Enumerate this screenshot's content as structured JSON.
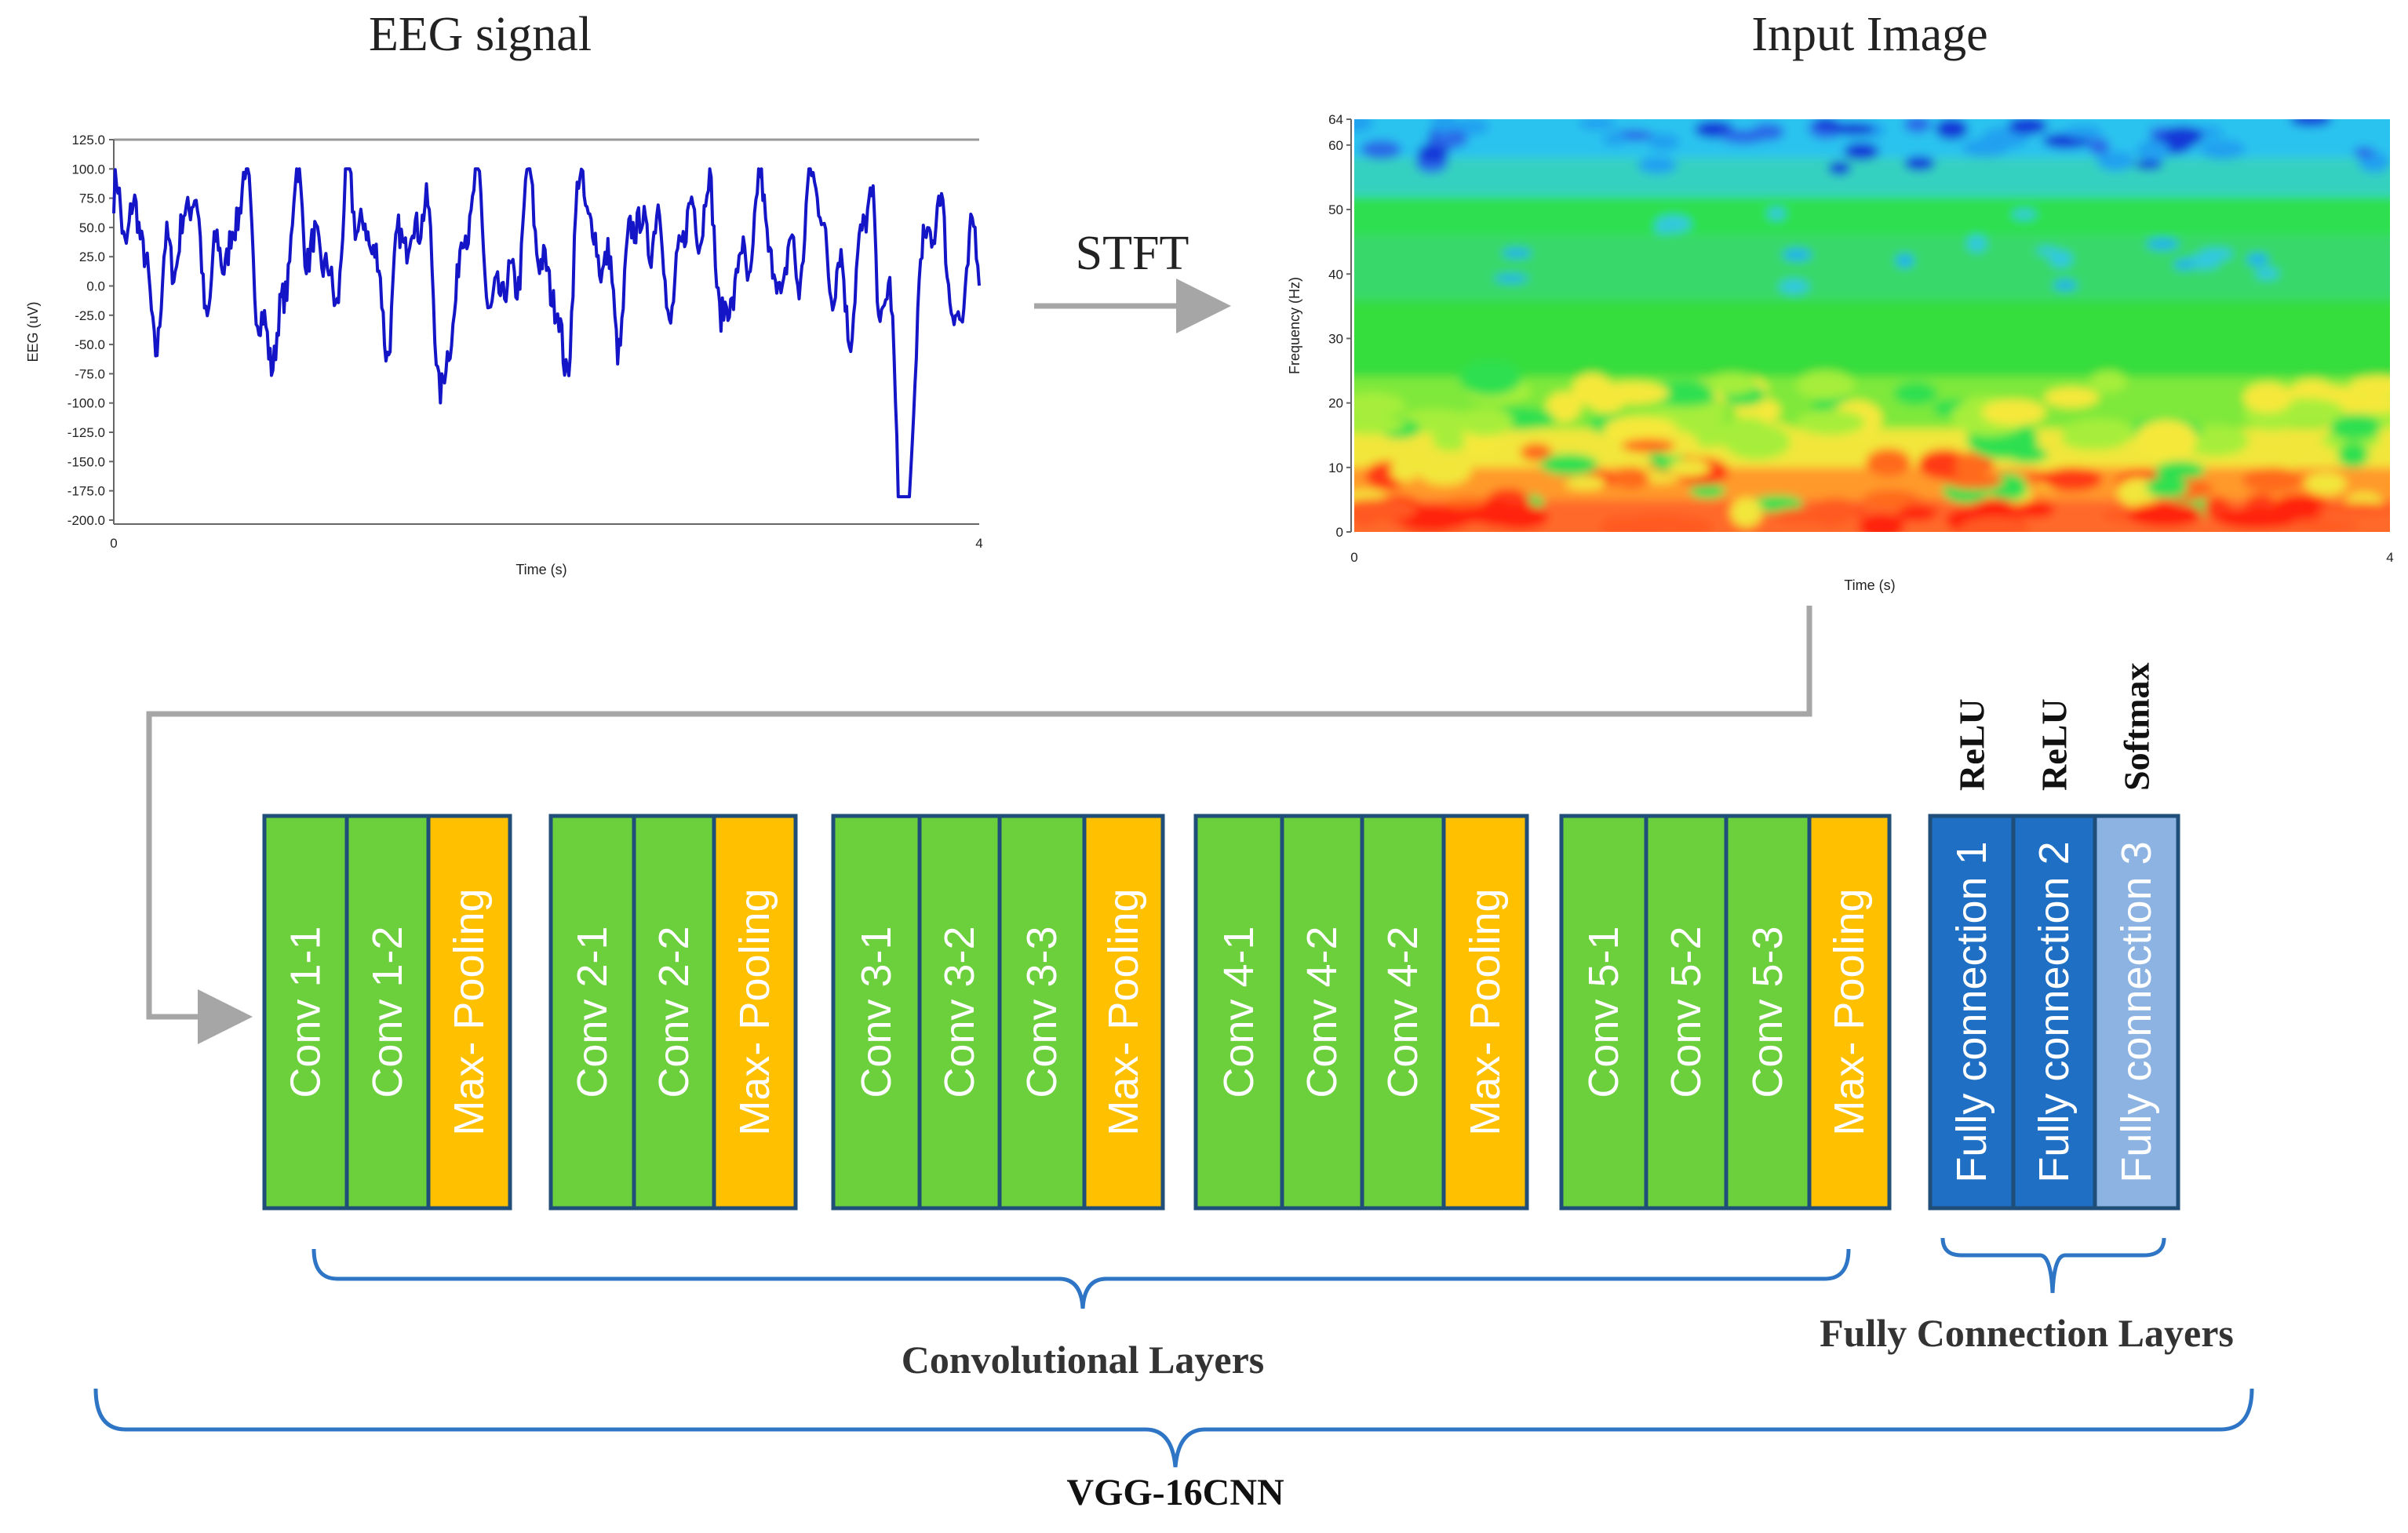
{
  "colors": {
    "conv": "#6ccf3c",
    "pool": "#ffc000",
    "fc_dark": "#1f6fc4",
    "fc_light": "#8db3e2",
    "stroke": "#1f4e79",
    "signal": "#1515c8",
    "arrow": "#a6a6a6",
    "brace": "#2e75c6"
  },
  "eeg": {
    "title": "EEG signal",
    "ylabel": "EEG (uV)",
    "xlabel": "Time (s)",
    "yticks": [
      "125.0",
      "100.0",
      "75.0",
      "50.0",
      "25.0",
      "0.0",
      "-25.0",
      "-50.0",
      "-75.0",
      "-100.0",
      "-125.0",
      "-150.0",
      "-175.0",
      "-200.0"
    ],
    "xticks": [
      "0",
      "4"
    ]
  },
  "stft_label": "STFT",
  "spectrogram": {
    "title": "Input Image",
    "ylabel": "Frequency (Hz)",
    "xlabel": "Time (s)",
    "yticks": [
      "64",
      "60",
      "50",
      "40",
      "30",
      "20",
      "10",
      "0"
    ],
    "xticks": [
      "0",
      "4"
    ]
  },
  "conv_groups": [
    {
      "layers": [
        {
          "label": "Conv  1-1",
          "type": "conv"
        },
        {
          "label": "Conv  1-2",
          "type": "conv"
        },
        {
          "label": "Max- Pooling",
          "type": "pool"
        }
      ]
    },
    {
      "layers": [
        {
          "label": "Conv  2-1",
          "type": "conv"
        },
        {
          "label": "Conv  2-2",
          "type": "conv"
        },
        {
          "label": "Max- Pooling",
          "type": "pool"
        }
      ]
    },
    {
      "layers": [
        {
          "label": "Conv  3-1",
          "type": "conv"
        },
        {
          "label": "Conv  3-2",
          "type": "conv"
        },
        {
          "label": "Conv  3-3",
          "type": "conv"
        },
        {
          "label": "Max- Pooling",
          "type": "pool"
        }
      ]
    },
    {
      "layers": [
        {
          "label": "Conv  4-1",
          "type": "conv"
        },
        {
          "label": "Conv  4-2",
          "type": "conv"
        },
        {
          "label": "Conv  4-2",
          "type": "conv"
        },
        {
          "label": "Max- Pooling",
          "type": "pool"
        }
      ]
    },
    {
      "layers": [
        {
          "label": "Conv  5-1",
          "type": "conv"
        },
        {
          "label": "Conv  5-2",
          "type": "conv"
        },
        {
          "label": "Conv  5-3",
          "type": "conv"
        },
        {
          "label": "Max- Pooling",
          "type": "pool"
        }
      ]
    }
  ],
  "fc_layers": [
    {
      "label": "Fully connection 1",
      "activation": "ReLU",
      "type": "fc_dark"
    },
    {
      "label": "Fully connection 2",
      "activation": "ReLU",
      "type": "fc_dark"
    },
    {
      "label": "Fully connection 3",
      "activation": "Softmax",
      "type": "fc_light"
    }
  ],
  "labels": {
    "conv_layers": "Convolutional Layers",
    "fc_layers": "Fully Connection Layers",
    "vgg": "VGG-16CNN"
  }
}
